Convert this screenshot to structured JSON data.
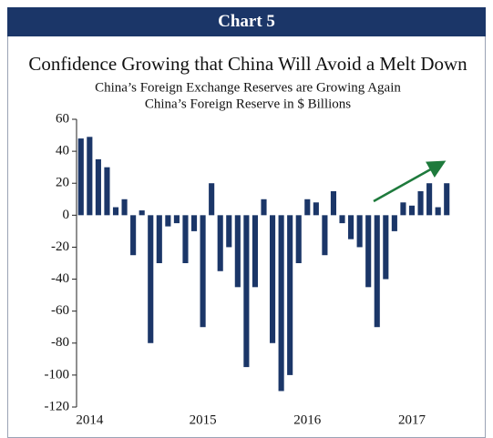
{
  "chart_data": {
    "type": "bar",
    "header": "Chart 5",
    "title": "Confidence Growing that China Will Avoid a Melt Down",
    "subtitle": "China’s Foreign Exchange Reserves are Growing Again",
    "y_label": "China’s Foreign Reserve in $ Billions",
    "categories": [
      null,
      "2014",
      null,
      null,
      null,
      null,
      null,
      null,
      null,
      null,
      null,
      null,
      null,
      null,
      "2015",
      null,
      null,
      null,
      null,
      null,
      null,
      null,
      null,
      null,
      null,
      null,
      "2016",
      null,
      null,
      null,
      null,
      null,
      null,
      null,
      null,
      null,
      null,
      null,
      "2017",
      null,
      null,
      null,
      null
    ],
    "values": [
      48,
      49,
      35,
      30,
      5,
      10,
      -25,
      3,
      -80,
      -30,
      -7,
      -5,
      -30,
      -10,
      -70,
      20,
      -35,
      -20,
      -45,
      -95,
      -45,
      10,
      -80,
      -110,
      -100,
      -30,
      10,
      8,
      -25,
      15,
      -5,
      -15,
      -20,
      -45,
      -70,
      -40,
      -10,
      8,
      6,
      15,
      20,
      5,
      20
    ],
    "color": "#1b3668",
    "ylim": [
      -120,
      60
    ],
    "yticks": [
      -120,
      -100,
      -80,
      -60,
      -40,
      -20,
      0,
      20,
      40,
      60
    ],
    "grid": false
  }
}
